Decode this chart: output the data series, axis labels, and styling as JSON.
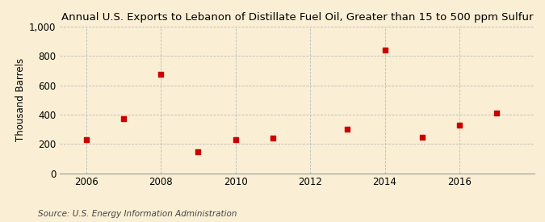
{
  "title": "Annual U.S. Exports to Lebanon of Distillate Fuel Oil, Greater than 15 to 500 ppm Sulfur",
  "ylabel": "Thousand Barrels",
  "source": "Source: U.S. Energy Information Administration",
  "years": [
    2006,
    2007,
    2008,
    2009,
    2010,
    2011,
    2013,
    2014,
    2015,
    2016,
    2017
  ],
  "values": [
    230,
    370,
    675,
    145,
    230,
    240,
    300,
    840,
    245,
    330,
    410
  ],
  "xlim": [
    2005.3,
    2018.0
  ],
  "ylim": [
    0,
    1000
  ],
  "yticks": [
    0,
    200,
    400,
    600,
    800,
    1000
  ],
  "xticks": [
    2006,
    2008,
    2010,
    2012,
    2014,
    2016
  ],
  "marker_color": "#cc0000",
  "marker": "s",
  "marker_size": 4,
  "bg_color": "#faefd4",
  "grid_color": "#bbbbbb",
  "title_fontsize": 9.5,
  "label_fontsize": 8.5,
  "tick_fontsize": 8.5,
  "source_fontsize": 7.5
}
